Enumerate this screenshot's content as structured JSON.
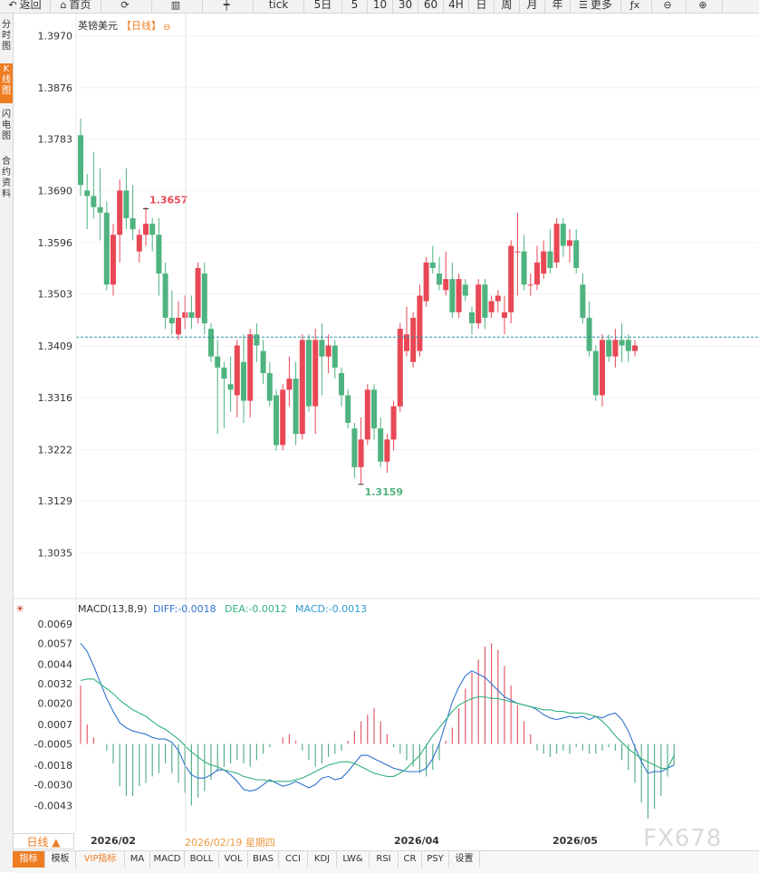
{
  "toolbar": {
    "items": [
      {
        "label": "返回",
        "icon": "back-arrow-icon",
        "glyph": "↶"
      },
      {
        "label": "首页",
        "icon": "home-icon",
        "glyph": "⌂"
      },
      {
        "label": "",
        "icon": "refresh-icon",
        "glyph": "⟳"
      },
      {
        "label": "",
        "icon": "bar-chart-icon",
        "glyph": "▥"
      },
      {
        "label": "",
        "icon": "candlestick-icon",
        "glyph": "┿"
      },
      {
        "label": "tick",
        "icon": "",
        "glyph": ""
      },
      {
        "label": "5日",
        "icon": "",
        "glyph": ""
      },
      {
        "label": "5",
        "icon": "",
        "glyph": ""
      },
      {
        "label": "10",
        "icon": "",
        "glyph": ""
      },
      {
        "label": "30",
        "icon": "",
        "glyph": ""
      },
      {
        "label": "60",
        "icon": "",
        "glyph": ""
      },
      {
        "label": "4H",
        "icon": "",
        "glyph": ""
      },
      {
        "label": "日",
        "icon": "",
        "glyph": ""
      },
      {
        "label": "周",
        "icon": "",
        "glyph": ""
      },
      {
        "label": "月",
        "icon": "",
        "glyph": ""
      },
      {
        "label": "年",
        "icon": "",
        "glyph": ""
      },
      {
        "label": "更多",
        "icon": "menu-icon",
        "glyph": "☰"
      },
      {
        "label": "",
        "icon": "function-icon",
        "glyph": "ƒx"
      },
      {
        "label": "",
        "icon": "zoom-out-icon",
        "glyph": "⊖"
      },
      {
        "label": "",
        "icon": "zoom-in-icon",
        "glyph": "⊕"
      }
    ]
  },
  "sidebar": {
    "tabs": [
      {
        "label": "分时图",
        "active": false
      },
      {
        "label": "K线图",
        "active": true
      },
      {
        "label": "闪电图",
        "active": false
      },
      {
        "label": "合约资料",
        "active": false
      }
    ]
  },
  "chart_header": {
    "symbol": "英镑美元",
    "period": "【日线】",
    "collapse_icon": "⊖"
  },
  "macd_header": {
    "name": "MACD(13,8,9)",
    "diff": "DIFF:-0.0018",
    "dea": "DEA:-0.0012",
    "macd": "MACD:-0.0013",
    "settings_icon": "☀"
  },
  "date_bar": {
    "period_select": "日线 ▲",
    "cursor_date": "2026/02/19 星期四",
    "dates": [
      "2026/02",
      "2026/04",
      "2026/05"
    ]
  },
  "indicator_tabs": [
    "指标",
    "模板",
    "VIP指标",
    "MA",
    "MACD",
    "BOLL",
    "VOL",
    "BIAS",
    "CCI",
    "KDJ",
    "LW&",
    "RSI",
    "CR",
    "PSY",
    "设置"
  ],
  "watermark": "FX678",
  "chart_data": [
    {
      "type": "candlestick",
      "title": "英镑美元【日线】",
      "y_ticks": [
        "1.3970",
        "1.3876",
        "1.3783",
        "1.3690",
        "1.3596",
        "1.3503",
        "1.3409",
        "1.3316",
        "1.3222",
        "1.3129",
        "1.3035"
      ],
      "ylim": [
        1.2995,
        1.4
      ],
      "current_price": 1.3425,
      "annotations": [
        {
          "label": "1.3657",
          "price": 1.3657,
          "type": "high"
        },
        {
          "label": "1.3159",
          "price": 1.3159,
          "type": "low"
        }
      ],
      "x_labels": [
        {
          "label": "2026/02",
          "index": 2
        },
        {
          "label": "2026/04",
          "index": 58
        },
        {
          "label": "2026/05",
          "index": 87
        }
      ],
      "colors": {
        "up": "#e84855",
        "down": "#4fb37f"
      },
      "candles": [
        [
          1.379,
          1.382,
          1.368,
          1.37
        ],
        [
          1.369,
          1.372,
          1.362,
          1.368
        ],
        [
          1.368,
          1.376,
          1.364,
          1.366
        ],
        [
          1.366,
          1.373,
          1.36,
          1.365
        ],
        [
          1.365,
          1.367,
          1.351,
          1.352
        ],
        [
          1.352,
          1.363,
          1.35,
          1.361
        ],
        [
          1.361,
          1.371,
          1.356,
          1.369
        ],
        [
          1.369,
          1.373,
          1.362,
          1.364
        ],
        [
          1.364,
          1.37,
          1.36,
          1.362
        ],
        [
          1.358,
          1.362,
          1.356,
          1.361
        ],
        [
          1.361,
          1.366,
          1.359,
          1.363
        ],
        [
          1.363,
          1.364,
          1.358,
          1.361
        ],
        [
          1.361,
          1.364,
          1.35,
          1.354
        ],
        [
          1.354,
          1.356,
          1.344,
          1.346
        ],
        [
          1.346,
          1.351,
          1.343,
          1.345
        ],
        [
          1.343,
          1.349,
          1.342,
          1.346
        ],
        [
          1.346,
          1.35,
          1.344,
          1.347
        ],
        [
          1.347,
          1.35,
          1.344,
          1.346
        ],
        [
          1.346,
          1.356,
          1.345,
          1.355
        ],
        [
          1.354,
          1.356,
          1.343,
          1.345
        ],
        [
          1.344,
          1.345,
          1.338,
          1.339
        ],
        [
          1.339,
          1.342,
          1.325,
          1.337
        ],
        [
          1.337,
          1.338,
          1.326,
          1.335
        ],
        [
          1.334,
          1.339,
          1.329,
          1.333
        ],
        [
          1.332,
          1.342,
          1.328,
          1.341
        ],
        [
          1.338,
          1.343,
          1.327,
          1.331
        ],
        [
          1.331,
          1.344,
          1.328,
          1.343
        ],
        [
          1.343,
          1.345,
          1.338,
          1.341
        ],
        [
          1.34,
          1.342,
          1.334,
          1.336
        ],
        [
          1.336,
          1.338,
          1.33,
          1.331
        ],
        [
          1.332,
          1.333,
          1.322,
          1.323
        ],
        [
          1.323,
          1.334,
          1.322,
          1.333
        ],
        [
          1.333,
          1.339,
          1.33,
          1.335
        ],
        [
          1.335,
          1.338,
          1.323,
          1.325
        ],
        [
          1.325,
          1.343,
          1.324,
          1.342
        ],
        [
          1.342,
          1.343,
          1.329,
          1.33
        ],
        [
          1.33,
          1.344,
          1.325,
          1.342
        ],
        [
          1.342,
          1.345,
          1.332,
          1.339
        ],
        [
          1.339,
          1.343,
          1.336,
          1.341
        ],
        [
          1.341,
          1.342,
          1.335,
          1.337
        ],
        [
          1.336,
          1.337,
          1.33,
          1.332
        ],
        [
          1.332,
          1.333,
          1.326,
          1.327
        ],
        [
          1.326,
          1.327,
          1.317,
          1.319
        ],
        [
          1.319,
          1.328,
          1.3159,
          1.324
        ],
        [
          1.324,
          1.334,
          1.323,
          1.333
        ],
        [
          1.333,
          1.334,
          1.324,
          1.326
        ],
        [
          1.326,
          1.328,
          1.319,
          1.32
        ],
        [
          1.32,
          1.325,
          1.318,
          1.324
        ],
        [
          1.324,
          1.331,
          1.322,
          1.33
        ],
        [
          1.33,
          1.345,
          1.329,
          1.344
        ],
        [
          1.34,
          1.348,
          1.339,
          1.343
        ],
        [
          1.338,
          1.347,
          1.337,
          1.346
        ],
        [
          1.34,
          1.352,
          1.339,
          1.35
        ],
        [
          1.349,
          1.357,
          1.348,
          1.356
        ],
        [
          1.356,
          1.359,
          1.354,
          1.355
        ],
        [
          1.354,
          1.357,
          1.351,
          1.352
        ],
        [
          1.351,
          1.358,
          1.35,
          1.353
        ],
        [
          1.353,
          1.356,
          1.346,
          1.347
        ],
        [
          1.347,
          1.354,
          1.346,
          1.353
        ],
        [
          1.352,
          1.353,
          1.349,
          1.35
        ],
        [
          1.347,
          1.348,
          1.343,
          1.345
        ],
        [
          1.345,
          1.353,
          1.344,
          1.352
        ],
        [
          1.352,
          1.353,
          1.344,
          1.346
        ],
        [
          1.347,
          1.35,
          1.346,
          1.349
        ],
        [
          1.349,
          1.351,
          1.347,
          1.35
        ],
        [
          1.346,
          1.35,
          1.343,
          1.347
        ],
        [
          1.347,
          1.36,
          1.345,
          1.359
        ],
        [
          1.358,
          1.365,
          1.35,
          1.358
        ],
        [
          1.358,
          1.361,
          1.351,
          1.352
        ],
        [
          1.352,
          1.354,
          1.35,
          1.352
        ],
        [
          1.352,
          1.359,
          1.351,
          1.356
        ],
        [
          1.354,
          1.36,
          1.353,
          1.358
        ],
        [
          1.358,
          1.362,
          1.354,
          1.355
        ],
        [
          1.356,
          1.364,
          1.355,
          1.363
        ],
        [
          1.363,
          1.364,
          1.357,
          1.359
        ],
        [
          1.359,
          1.362,
          1.356,
          1.36
        ],
        [
          1.36,
          1.362,
          1.354,
          1.355
        ],
        [
          1.352,
          1.354,
          1.345,
          1.346
        ],
        [
          1.346,
          1.349,
          1.339,
          1.34
        ],
        [
          1.34,
          1.341,
          1.331,
          1.332
        ],
        [
          1.332,
          1.343,
          1.33,
          1.342
        ],
        [
          1.342,
          1.343,
          1.338,
          1.339
        ],
        [
          1.339,
          1.344,
          1.337,
          1.342
        ],
        [
          1.342,
          1.345,
          1.338,
          1.341
        ],
        [
          1.342,
          1.343,
          1.338,
          1.34
        ],
        [
          1.34,
          1.342,
          1.339,
          1.341
        ]
      ]
    },
    {
      "type": "bar+line",
      "title": "MACD(13,8,9)",
      "y_ticks": [
        "0.0069",
        "0.0057",
        "0.0044",
        "0.0032",
        "0.0020",
        "0.0007",
        "-0.0005",
        "-0.0018",
        "-0.0030",
        "-0.0043"
      ],
      "ylim": [
        -0.0056,
        0.0075
      ],
      "colors": {
        "diff": "#2f74d0",
        "dea": "#33b37a",
        "hist_up": "#e35d6a",
        "hist_down": "#5bb08a"
      },
      "series": [
        {
          "name": "DIFF",
          "values": [
            0.0057,
            0.0052,
            0.0043,
            0.0033,
            0.0023,
            0.0015,
            0.0008,
            0.0005,
            0.0003,
            0.0002,
            0.0001,
            -0.0001,
            -0.0002,
            -0.0002,
            -0.0004,
            -0.0009,
            -0.0018,
            -0.0024,
            -0.0026,
            -0.0026,
            -0.0024,
            -0.0021,
            -0.0021,
            -0.0024,
            -0.0028,
            -0.0033,
            -0.0034,
            -0.0033,
            -0.003,
            -0.0027,
            -0.0029,
            -0.0031,
            -0.003,
            -0.0028,
            -0.003,
            -0.0032,
            -0.003,
            -0.0026,
            -0.0025,
            -0.0027,
            -0.0026,
            -0.0022,
            -0.0017,
            -0.0012,
            -0.0012,
            -0.0014,
            -0.0016,
            -0.0018,
            -0.002,
            -0.0021,
            -0.0022,
            -0.0022,
            -0.0022,
            -0.002,
            -0.0014,
            -0.0005,
            0.0008,
            0.0021,
            0.003,
            0.0037,
            0.004,
            0.0038,
            0.0036,
            0.0032,
            0.0028,
            0.0024,
            0.0022,
            0.002,
            0.0019,
            0.0018,
            0.0016,
            0.0013,
            0.0011,
            0.001,
            0.0011,
            0.0012,
            0.0011,
            0.0012,
            0.001,
            0.0012,
            0.0011,
            0.0013,
            0.0014,
            0.001,
            0.0003,
            -0.0007,
            -0.0016,
            -0.0023,
            -0.0022,
            -0.0022,
            -0.002,
            -0.0018
          ]
        },
        {
          "name": "DEA",
          "values": [
            0.0034,
            0.0035,
            0.0035,
            0.0032,
            0.0029,
            0.0026,
            0.0022,
            0.0019,
            0.0016,
            0.0014,
            0.0012,
            0.0009,
            0.0006,
            0.0004,
            0.0001,
            -0.0002,
            -0.0006,
            -0.001,
            -0.0013,
            -0.0016,
            -0.0018,
            -0.0019,
            -0.0021,
            -0.0022,
            -0.0023,
            -0.0025,
            -0.0026,
            -0.0027,
            -0.0027,
            -0.0028,
            -0.0028,
            -0.0028,
            -0.0028,
            -0.0027,
            -0.0026,
            -0.0024,
            -0.0022,
            -0.002,
            -0.0018,
            -0.0017,
            -0.0016,
            -0.0016,
            -0.0017,
            -0.0019,
            -0.0021,
            -0.0023,
            -0.0024,
            -0.0025,
            -0.0025,
            -0.0023,
            -0.002,
            -0.0016,
            -0.0012,
            -0.0006,
            0.0,
            0.0005,
            0.001,
            0.0015,
            0.0019,
            0.0021,
            0.0023,
            0.0024,
            0.0024,
            0.0023,
            0.0023,
            0.0022,
            0.0021,
            0.002,
            0.0019,
            0.0018,
            0.0017,
            0.0016,
            0.0016,
            0.0015,
            0.0015,
            0.0014,
            0.0014,
            0.0014,
            0.0013,
            0.0012,
            0.0009,
            0.0005,
            0.0,
            -0.0004,
            -0.0008,
            -0.0011,
            -0.0014,
            -0.0016,
            -0.0018,
            -0.002,
            -0.002,
            -0.0012
          ]
        },
        {
          "name": "MACD",
          "values": [
            0.0036,
            0.0012,
            0.0004,
            0.0,
            -0.0004,
            -0.0012,
            -0.0026,
            -0.0032,
            -0.0032,
            -0.0026,
            -0.0024,
            -0.002,
            -0.0018,
            -0.0012,
            -0.0018,
            -0.0024,
            -0.003,
            -0.0038,
            -0.0033,
            -0.0029,
            -0.0022,
            -0.0017,
            -0.0014,
            -0.0012,
            -0.001,
            -0.0012,
            -0.0014,
            -0.001,
            -0.0006,
            -0.0002,
            0.0,
            0.0004,
            0.0006,
            0.0002,
            -0.0004,
            -0.001,
            -0.0014,
            -0.0012,
            -0.0008,
            -0.0006,
            -0.0004,
            0.0002,
            0.0008,
            0.0014,
            0.0018,
            0.0022,
            0.0014,
            0.0006,
            -0.0002,
            -0.0006,
            -0.001,
            -0.0014,
            -0.0018,
            -0.002,
            -0.0016,
            -0.001,
            0.0002,
            0.001,
            0.0022,
            0.0034,
            0.0044,
            0.0052,
            0.006,
            0.0062,
            0.0058,
            0.0048,
            0.0036,
            0.0024,
            0.0014,
            0.0006,
            -0.0004,
            -0.0006,
            -0.0008,
            -0.0006,
            -0.0004,
            -0.0006,
            -0.0002,
            -0.0004,
            -0.0006,
            -0.0006,
            -0.0004,
            -0.0002,
            -0.0004,
            -0.001,
            -0.0016,
            -0.0024,
            -0.0036,
            -0.0046,
            -0.004,
            -0.0032,
            -0.002,
            -0.0013
          ]
        }
      ]
    }
  ]
}
